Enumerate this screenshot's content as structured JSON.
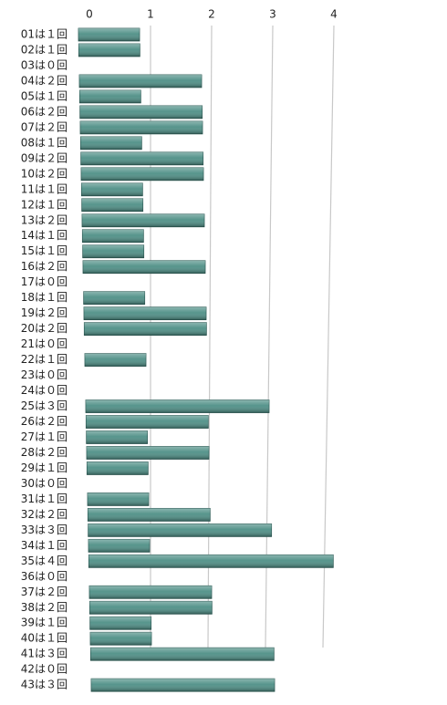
{
  "chart_data": {
    "type": "bar",
    "orientation": "horizontal",
    "categories": [
      "01は１回",
      "02は１回",
      "03は０回",
      "04は２回",
      "05は１回",
      "06は２回",
      "07は２回",
      "08は１回",
      "09は２回",
      "10は２回",
      "11は１回",
      "12は１回",
      "13は２回",
      "14は１回",
      "15は１回",
      "16は２回",
      "17は０回",
      "18は１回",
      "19は２回",
      "20は２回",
      "21は０回",
      "22は１回",
      "23は０回",
      "24は０回",
      "25は３回",
      "26は２回",
      "27は１回",
      "28は２回",
      "29は１回",
      "30は０回",
      "31は１回",
      "32は２回",
      "33は３回",
      "34は１回",
      "35は４回",
      "36は０回",
      "37は２回",
      "38は２回",
      "39は１回",
      "40は１回",
      "41は３回",
      "42は０回",
      "43は３回"
    ],
    "values": [
      1,
      1,
      0,
      2,
      1,
      2,
      2,
      1,
      2,
      2,
      1,
      1,
      2,
      1,
      1,
      2,
      0,
      1,
      2,
      2,
      0,
      1,
      0,
      0,
      3,
      2,
      1,
      2,
      1,
      0,
      1,
      2,
      3,
      1,
      4,
      0,
      2,
      2,
      1,
      1,
      3,
      0,
      3
    ],
    "color": "#4e8f86",
    "xlim": [
      0,
      4
    ],
    "xticks": [
      0,
      1,
      2,
      3,
      4
    ],
    "grid": true
  }
}
